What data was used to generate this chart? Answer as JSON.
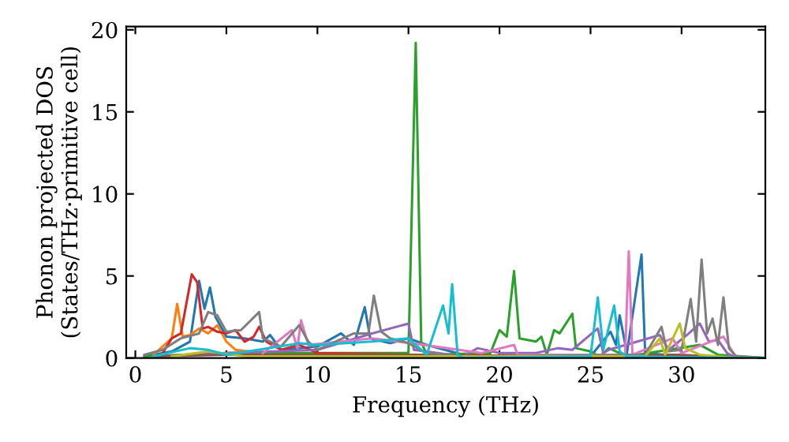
{
  "chart_data": {
    "type": "line",
    "xlabel": "Frequency (THz)",
    "ylabel": "Phonon projected DOS\n(States/THz·primitive cell)",
    "xlim": [
      -0.5,
      34.6
    ],
    "ylim": [
      0,
      20.2
    ],
    "xticks": [
      0,
      5,
      10,
      15,
      20,
      25,
      30
    ],
    "yticks": [
      0,
      5,
      10,
      15,
      20
    ],
    "grid": false,
    "legend": false,
    "marker": "none",
    "line_style": "solid",
    "series": [
      {
        "color": "#1f77b4",
        "x": [
          0.5,
          2,
          3,
          3.5,
          3.8,
          4.1,
          4.4,
          5,
          6,
          7,
          7.4,
          8,
          10,
          11.3,
          12,
          12.6,
          12.9,
          14,
          15,
          16,
          17,
          18,
          21,
          25,
          26.1,
          26.4,
          26.6,
          27,
          27.8,
          28,
          30,
          33,
          34.6
        ],
        "values": [
          0.1,
          0.4,
          1.0,
          4.7,
          3.0,
          4.3,
          2.5,
          1.3,
          1.2,
          1.0,
          1.4,
          0.5,
          0.7,
          1.5,
          0.8,
          3.1,
          1.2,
          0.9,
          1.2,
          0.8,
          0.5,
          0.2,
          0.1,
          0.1,
          1.6,
          0.8,
          2.6,
          0.3,
          6.3,
          0.3,
          0.1,
          0,
          0
        ]
      },
      {
        "color": "#ff7f0e",
        "x": [
          1,
          2,
          2.3,
          2.6,
          3,
          3.5,
          4,
          4.5,
          5,
          5.5,
          7,
          10
        ],
        "values": [
          0.2,
          1.2,
          3.3,
          1.3,
          1.4,
          1.8,
          1.5,
          2.0,
          1.0,
          0.5,
          0.3,
          0.2
        ]
      },
      {
        "color": "#2ca02c",
        "x": [
          0.5,
          5,
          10,
          15,
          15.4,
          15.7,
          16,
          19.5,
          20,
          20.4,
          20.8,
          21.1,
          22,
          22.3,
          22.6,
          23,
          23.3,
          24,
          24.2,
          25,
          25.5,
          26,
          27,
          31,
          32,
          34.6
        ],
        "values": [
          0.1,
          0.3,
          0.3,
          0.3,
          19.2,
          1.0,
          0.2,
          0.3,
          1.7,
          1.3,
          5.3,
          1.2,
          1.0,
          1.3,
          0.2,
          1.7,
          1.5,
          2.7,
          0.6,
          0.4,
          0.1,
          0.6,
          0.1,
          0.8,
          0.2,
          0
        ]
      },
      {
        "color": "#d62728",
        "x": [
          1.5,
          2,
          2.5,
          3.1,
          3.4,
          3.7,
          4,
          4.5,
          5,
          5.5,
          6,
          6.5,
          6.8,
          7.2,
          8,
          9,
          10,
          15,
          33,
          34.6
        ],
        "values": [
          0.3,
          1.2,
          1.5,
          5.1,
          4.6,
          1.8,
          1.9,
          1.6,
          1.5,
          1.7,
          1.0,
          1.3,
          1.9,
          1.0,
          0.5,
          0.8,
          0.3,
          0.2,
          0,
          0
        ]
      },
      {
        "color": "#9467bd",
        "x": [
          1,
          5,
          10,
          13,
          15,
          15.3,
          18,
          18.8,
          20,
          22,
          23.2,
          24,
          25.4,
          25.7,
          26,
          28.8,
          29.3,
          30.4,
          31,
          31.5,
          32,
          32.5,
          33,
          34.6
        ],
        "values": [
          0.1,
          0.3,
          0.5,
          1.5,
          2.1,
          0.5,
          0.1,
          0.6,
          0.3,
          0.3,
          0.6,
          0.5,
          1.8,
          0.3,
          0.5,
          1.4,
          0.5,
          1.5,
          2.1,
          1.0,
          1.1,
          0.3,
          0,
          0
        ]
      },
      {
        "color": "#8c564b",
        "x": [
          1,
          5,
          10,
          15,
          20,
          25,
          30,
          33,
          34.6
        ],
        "values": [
          0.1,
          0.2,
          0.2,
          0.2,
          0.1,
          0.2,
          0.2,
          0,
          0
        ]
      },
      {
        "color": "#e377c2",
        "x": [
          7,
          8.6,
          8.9,
          9.1,
          9.5,
          13,
          15.2,
          19,
          20.8,
          21,
          26.9,
          27.1,
          27.3,
          29.5,
          30,
          32.3,
          33,
          34.6
        ],
        "values": [
          0.3,
          1.7,
          0.6,
          2.3,
          0.8,
          1.2,
          0.9,
          0.3,
          0.8,
          0.2,
          0.2,
          6.5,
          0.2,
          1.2,
          0.3,
          1.3,
          0,
          0
        ]
      },
      {
        "color": "#7f7f7f",
        "x": [
          0.5,
          1.5,
          2.5,
          3.5,
          4,
          4.5,
          5,
          5.8,
          6.8,
          7,
          8,
          9,
          9.5,
          10,
          12,
          12.8,
          13.1,
          13.5,
          14,
          15,
          16,
          18,
          28,
          28.9,
          29.2,
          30,
          30.5,
          30.8,
          31.1,
          31.4,
          31.7,
          32,
          32.3,
          32.6,
          33,
          34.6
        ],
        "values": [
          0.2,
          0.5,
          1.2,
          1.5,
          2.8,
          2.6,
          1.6,
          1.7,
          2.8,
          1.2,
          0.7,
          2.0,
          1.0,
          0.5,
          1.5,
          1.5,
          3.8,
          1.6,
          1.2,
          0.9,
          0.3,
          0.1,
          0.2,
          1.9,
          0.4,
          0.5,
          3.6,
          1.0,
          6.0,
          1.5,
          2.4,
          0.8,
          3.7,
          0.6,
          0.1,
          0
        ]
      },
      {
        "color": "#bcbd22",
        "x": [
          2,
          4,
          6,
          7,
          28,
          28.8,
          29.1,
          29.9,
          30.2,
          31,
          33,
          34.6
        ],
        "values": [
          0.1,
          0.4,
          0.1,
          0.1,
          0.1,
          1.2,
          0.2,
          2.1,
          0.6,
          0.2,
          0,
          0
        ]
      },
      {
        "color": "#17becf",
        "x": [
          1,
          3,
          4,
          5,
          9,
          10,
          13,
          15,
          16,
          16.9,
          17.2,
          17.4,
          17.7,
          18,
          25,
          25.4,
          25.7,
          26.3,
          26.6,
          27,
          33,
          34.6
        ],
        "values": [
          0.1,
          0.6,
          0.5,
          0.2,
          0.9,
          0.8,
          1.0,
          1.2,
          0.2,
          3.2,
          1.5,
          4.5,
          0.2,
          0,
          0.1,
          3.7,
          0.5,
          3.2,
          0.4,
          0.1,
          0,
          0
        ]
      }
    ]
  }
}
